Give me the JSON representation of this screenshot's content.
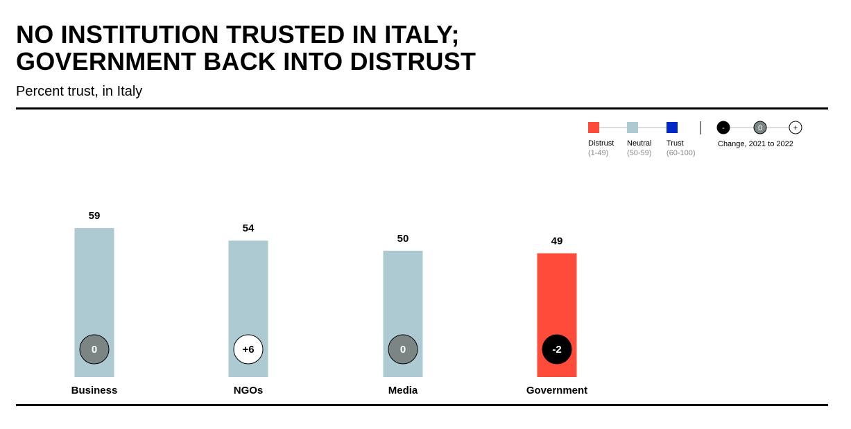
{
  "header": {
    "title_line1": "NO INSTITUTION TRUSTED IN ITALY;",
    "title_line2": "GOVERNMENT BACK INTO DISTRUST",
    "subtitle": "Percent trust, in Italy"
  },
  "legend": {
    "categories": [
      {
        "label": "Distrust",
        "range": "(1-49)",
        "color": "#ff4b3a"
      },
      {
        "label": "Neutral",
        "range": "(50-59)",
        "color": "#adc9d2"
      },
      {
        "label": "Trust",
        "range": "(60-100)",
        "color": "#0027c7"
      }
    ],
    "change_markers": [
      {
        "symbol": "-",
        "fill": "#000000",
        "text_color": "#ffffff"
      },
      {
        "symbol": "0",
        "fill": "#7a8584",
        "text_color": "#ffffff"
      },
      {
        "symbol": "+",
        "fill": "#ffffff",
        "text_color": "#000000"
      }
    ],
    "change_label": "Change, 2021 to 2022"
  },
  "chart_data": {
    "type": "bar",
    "categories": [
      "Business",
      "NGOs",
      "Media",
      "Government"
    ],
    "values": [
      59,
      54,
      50,
      49
    ],
    "change": [
      "0",
      "+6",
      "0",
      "-2"
    ],
    "bar_colors": [
      "#adc9d2",
      "#adc9d2",
      "#adc9d2",
      "#ff4b3a"
    ],
    "ylim": [
      0,
      100
    ],
    "grid": false
  }
}
